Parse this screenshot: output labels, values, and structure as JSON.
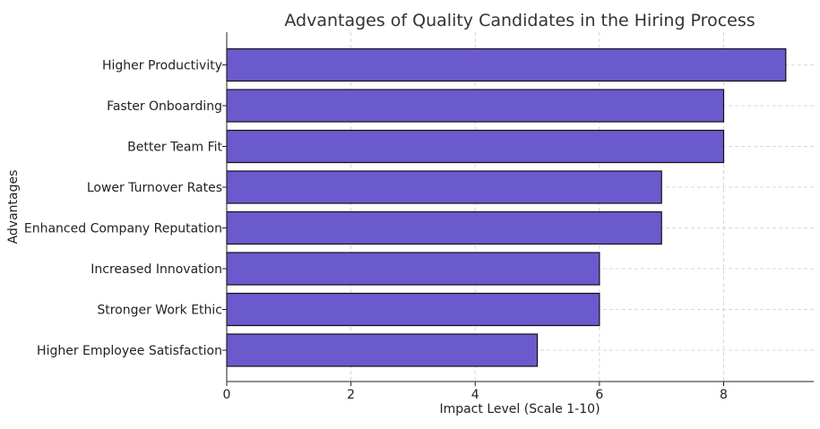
{
  "chart_data": {
    "type": "bar",
    "orientation": "horizontal",
    "title": "Advantages of Quality Candidates in the Hiring Process",
    "xlabel": "Impact Level (Scale 1-10)",
    "ylabel": "Advantages",
    "categories": [
      "Higher Productivity",
      "Faster Onboarding",
      "Better Team Fit",
      "Lower Turnover Rates",
      "Enhanced Company Reputation",
      "Increased Innovation",
      "Stronger Work Ethic",
      "Higher Employee Satisfaction"
    ],
    "values": [
      9,
      8,
      8,
      7,
      7,
      6,
      6,
      5
    ],
    "xlim": [
      0,
      9.45
    ],
    "xticks": [
      0,
      2,
      4,
      6,
      8
    ],
    "grid": true,
    "bar_color": "#6a5acd",
    "legend": false
  }
}
